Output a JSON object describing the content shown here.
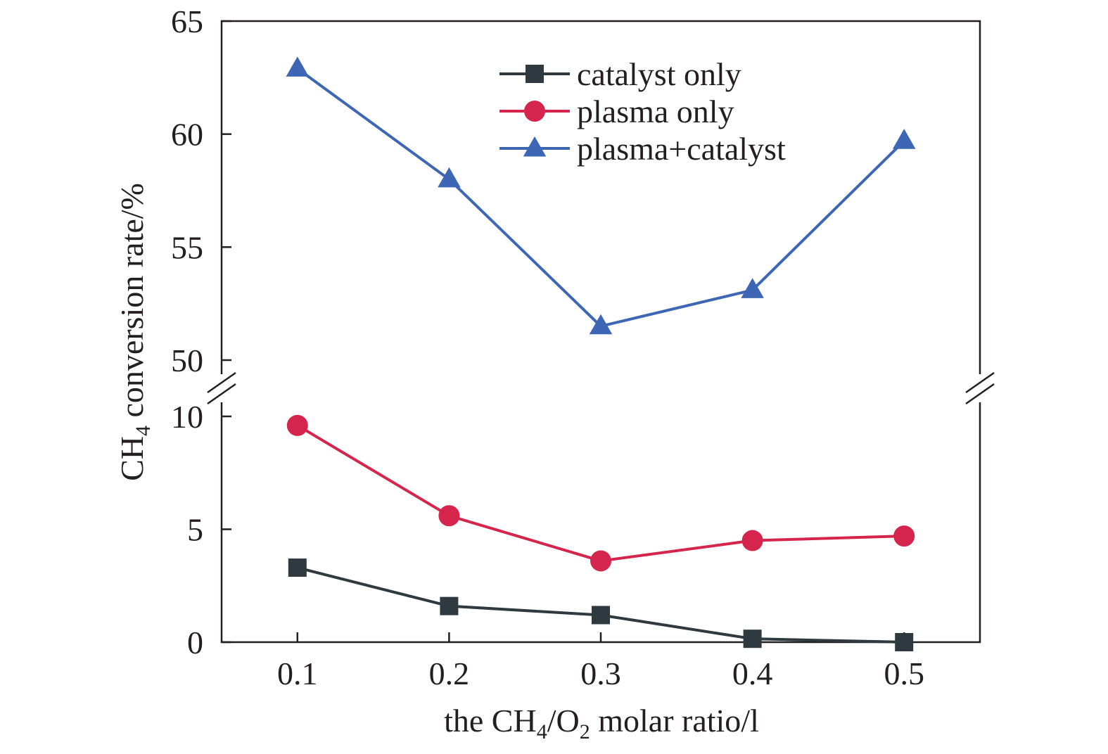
{
  "chart_data": {
    "type": "line",
    "x": [
      0.1,
      0.2,
      0.3,
      0.4,
      0.5
    ],
    "x_tick_labels": [
      "0.1",
      "0.2",
      "0.3",
      "0.4",
      "0.5"
    ],
    "xlim": [
      0.05,
      0.55
    ],
    "xlabel": {
      "pre": "the CH",
      "sub1": "4",
      "mid": "/O",
      "sub2": "2",
      "post": " molar ratio/l"
    },
    "ylabel": {
      "pre": "CH",
      "sub": "4",
      "post": " conversion rate/%"
    },
    "y_axis_break": true,
    "y_lower_segment": {
      "ylim": [
        0,
        10
      ],
      "ticks": [
        0,
        5,
        10
      ],
      "tick_labels": [
        "0",
        "5",
        "10"
      ]
    },
    "y_upper_segment": {
      "ylim": [
        50,
        65
      ],
      "ticks": [
        50,
        55,
        60,
        65
      ],
      "tick_labels": [
        "50",
        "55",
        "60",
        "65"
      ]
    },
    "legend_position": "top-right",
    "grid": false,
    "series": [
      {
        "name": "catalyst only",
        "marker": "square",
        "color": "#2e3a40",
        "values": [
          3.3,
          1.6,
          1.2,
          0.15,
          0.0
        ]
      },
      {
        "name": "plasma only",
        "marker": "circle",
        "color": "#d6254d",
        "values": [
          9.6,
          5.6,
          3.6,
          4.5,
          4.7
        ]
      },
      {
        "name": "plasma+catalyst",
        "marker": "triangle",
        "color": "#3d67b4",
        "values": [
          62.9,
          58.0,
          51.5,
          53.1,
          59.7
        ]
      }
    ]
  }
}
